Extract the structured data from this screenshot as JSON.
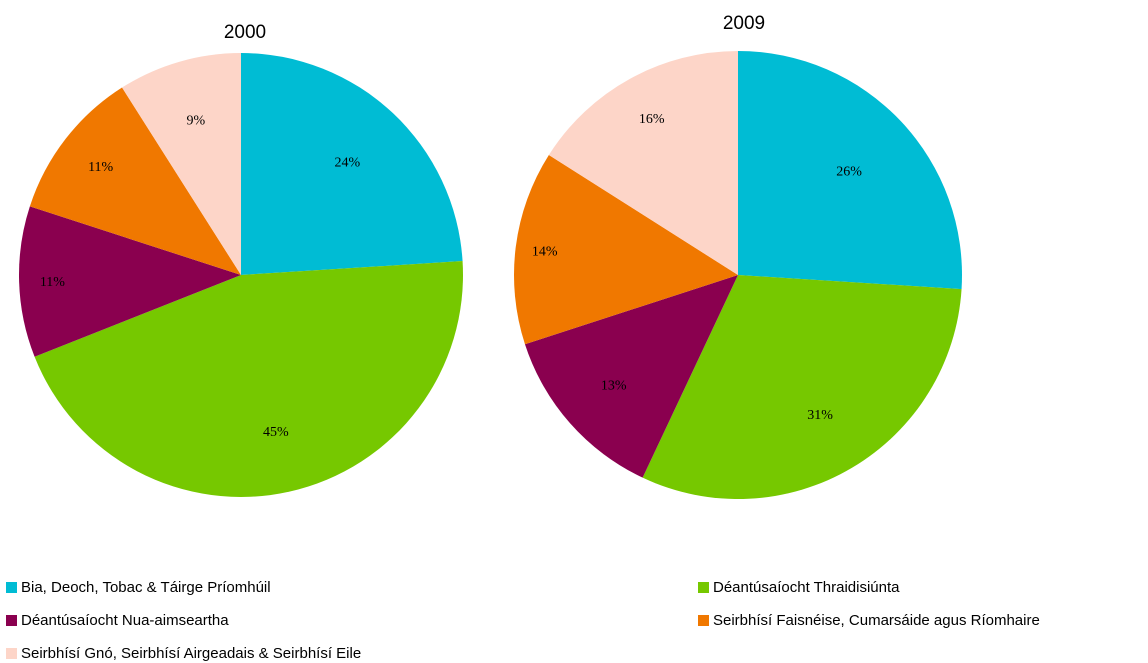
{
  "chart_data": [
    {
      "type": "pie",
      "title": "2000",
      "categories": [
        "Bia, Deoch, Tobac & Táirge Príomhúil",
        "Déantúsaíocht Thraidisiúnta",
        "Déantúsaíocht Nua-aimseartha",
        "Seirbhísí Faisnéise, Cumarsáide agus Ríomhaire",
        "Seirbhísí Gnó, Seirbhísí Airgeadais & Seirbhísí Eile"
      ],
      "values": [
        24,
        45,
        11,
        11,
        9
      ],
      "labels": [
        "24%",
        "45%",
        "11%",
        "11%",
        "9%"
      ]
    },
    {
      "type": "pie",
      "title": "2009",
      "categories": [
        "Bia, Deoch, Tobac & Táirge Príomhúil",
        "Déantúsaíocht Thraidisiúnta",
        "Déantúsaíocht Nua-aimseartha",
        "Seirbhísí Faisnéise, Cumarsáide agus Ríomhaire",
        "Seirbhísí Gnó, Seirbhísí Airgeadais & Seirbhísí Eile"
      ],
      "values": [
        26,
        31,
        13,
        14,
        16
      ],
      "labels": [
        "26%",
        "31%",
        "13%",
        "14%",
        "16%"
      ]
    }
  ],
  "legend": {
    "placement": "bottom",
    "items": [
      {
        "label": "Bia, Deoch, Tobac & Táirge Príomhúil",
        "color": "#00BCD4"
      },
      {
        "label": "Déantúsaíocht Thraidisiúnta",
        "color": "#76C800"
      },
      {
        "label": "Déantúsaíocht Nua-aimseartha",
        "color": "#8A004F"
      },
      {
        "label": "Seirbhísí Faisnéise, Cumarsáide agus Ríomhaire",
        "color": "#F07800"
      },
      {
        "label": "Seirbhísí Gnó, Seirbhísí Airgeadais & Seirbhísí Eile",
        "color": "#FDD5C8"
      }
    ]
  }
}
